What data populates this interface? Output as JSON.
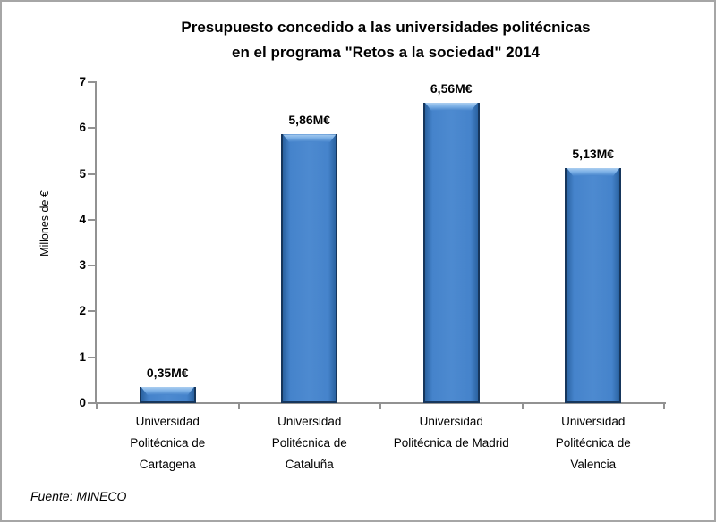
{
  "title": {
    "line1": "Presupuesto concedido a las universidades politécnicas",
    "line2": "en el programa \"Retos a la sociedad\" 2014"
  },
  "source_note": "Fuente: MINECO",
  "chart_data": {
    "type": "bar",
    "title": "Presupuesto concedido a las universidades politécnicas en el programa \"Retos a la sociedad\" 2014",
    "categories": [
      "Universidad Politécnica de Cartagena",
      "Universidad Politécnica de Cataluña",
      "Universidad Politécnica de Madrid",
      "Universidad Politécnica de Valencia"
    ],
    "category_lines": [
      [
        "Universidad",
        "Politécnica de",
        "Cartagena"
      ],
      [
        "Universidad",
        "Politécnica de",
        "Cataluña"
      ],
      [
        "Universidad",
        "Politécnica de Madrid"
      ],
      [
        "Universidad",
        "Politécnica de",
        "Valencia"
      ]
    ],
    "values": [
      0.35,
      5.86,
      6.56,
      5.13
    ],
    "data_labels": [
      "0,35M€",
      "5,86M€",
      "6,56M€",
      "5,13M€"
    ],
    "xlabel": "",
    "ylabel": "Millones de €",
    "ylim": [
      0,
      7
    ],
    "yticks": [
      0,
      1,
      2,
      3,
      4,
      5,
      6,
      7
    ],
    "grid": false,
    "legend": false,
    "source": "Fuente: MINECO",
    "colors": {
      "bar_fill": "#4583CB",
      "bar_fill_edge": "#2A62A0",
      "bar_border": "#16365C",
      "bar_bevel_light": "#ABCEF0",
      "bar_bevel_mid": "#7DB1E6",
      "axis": "#929292",
      "frame_border": "#A6A6A6",
      "text": "#000000"
    }
  }
}
